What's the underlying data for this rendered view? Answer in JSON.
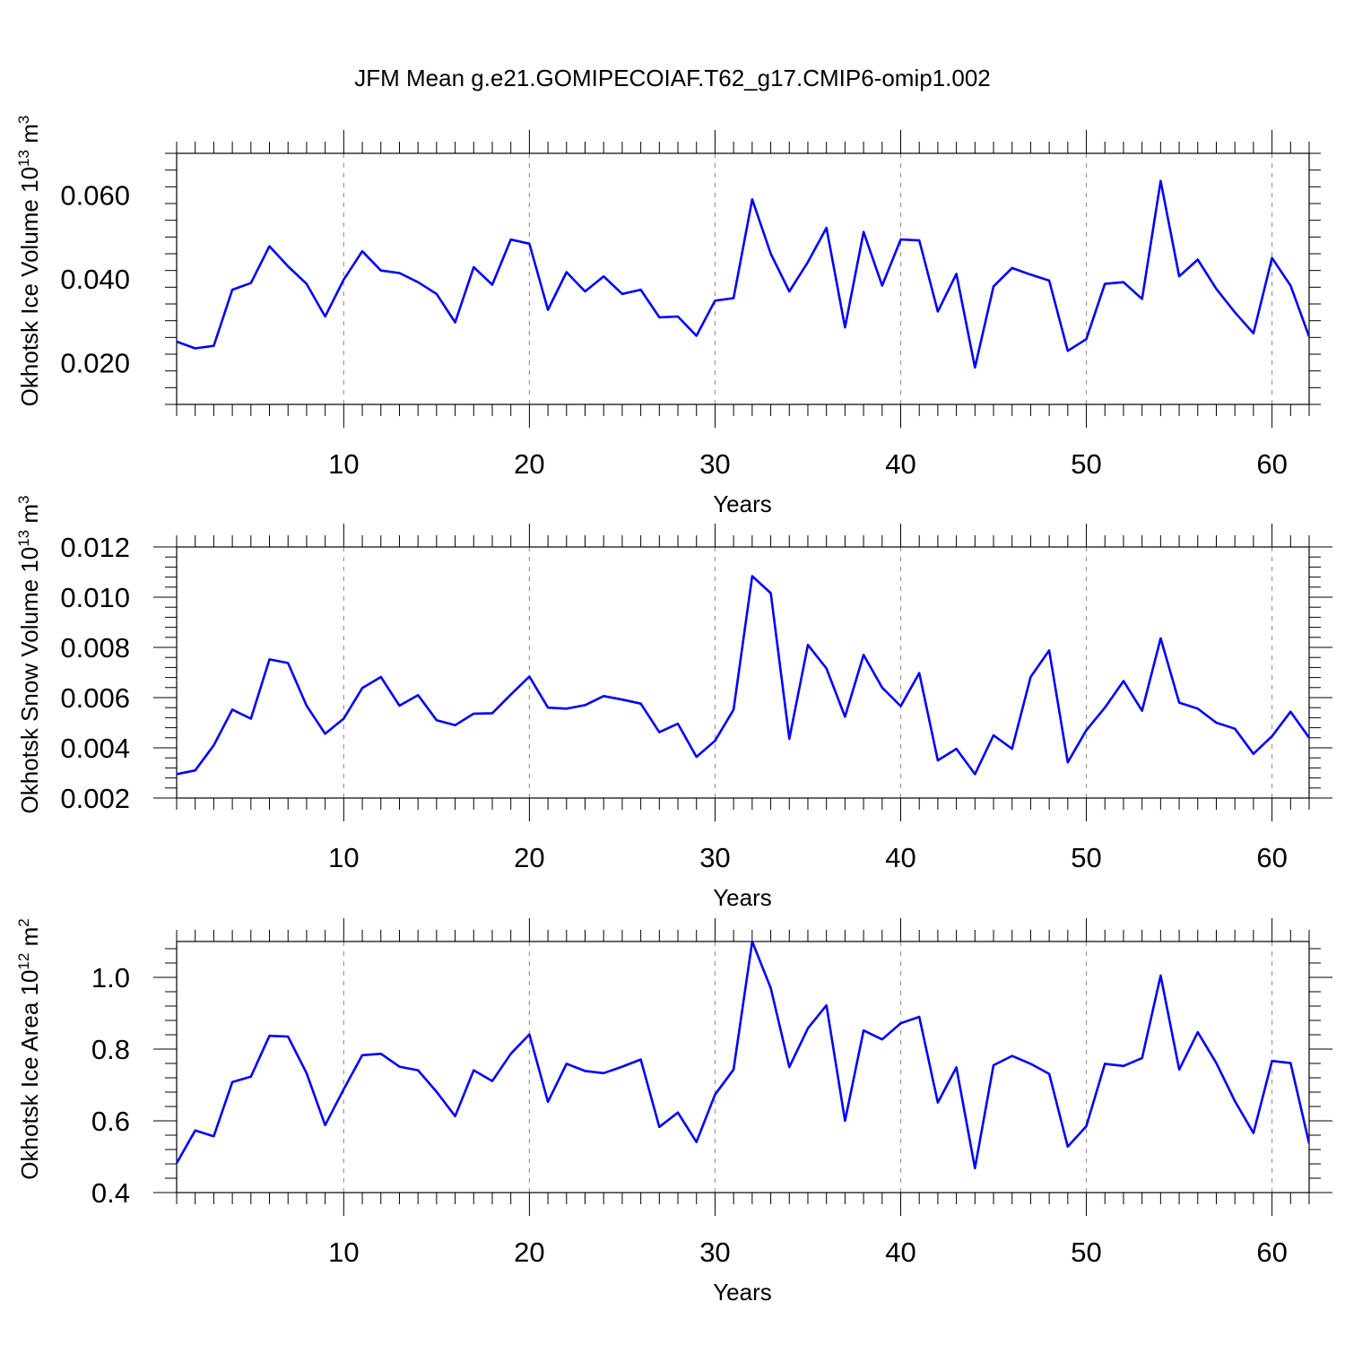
{
  "title": "JFM Mean g.e21.GOMIPECOIAF.T62_g17.CMIP6-omip1.002",
  "colors": {
    "line": "#0000ff",
    "axis": "#000000",
    "grid": "#999999"
  },
  "chart_data": [
    {
      "type": "line",
      "title": "",
      "xlabel": "Years",
      "ylabel": "Okhotsk Ice Volume 10",
      "ylabel_exp": "13",
      "ylabel_unit": " m",
      "ylabel_unit_exp": "3",
      "xlim": [
        1,
        62
      ],
      "ylim": [
        0.01,
        0.07
      ],
      "xticks": [
        10,
        20,
        30,
        40,
        50,
        60
      ],
      "xtick_labels": [
        "10",
        "20",
        "30",
        "40",
        "50",
        "60"
      ],
      "yticks": [
        0.02,
        0.04,
        0.06
      ],
      "ytick_labels": [
        "0.020",
        "0.040",
        "0.060"
      ],
      "grid_x": true,
      "x": [
        1,
        2,
        3,
        4,
        5,
        6,
        7,
        8,
        9,
        10,
        11,
        12,
        13,
        14,
        15,
        16,
        17,
        18,
        19,
        20,
        21,
        22,
        23,
        24,
        25,
        26,
        27,
        28,
        29,
        30,
        31,
        32,
        33,
        34,
        35,
        36,
        37,
        38,
        39,
        40,
        41,
        42,
        43,
        44,
        45,
        46,
        47,
        48,
        49,
        50,
        51,
        52,
        53,
        54,
        55,
        56,
        57,
        58,
        59,
        60,
        61,
        62
      ],
      "values": [
        0.025,
        0.0234,
        0.024,
        0.0374,
        0.039,
        0.0478,
        0.043,
        0.0388,
        0.031,
        0.0398,
        0.0466,
        0.042,
        0.0414,
        0.0392,
        0.0364,
        0.0296,
        0.0428,
        0.0386,
        0.0494,
        0.0484,
        0.0326,
        0.0416,
        0.037,
        0.0406,
        0.0364,
        0.0374,
        0.0308,
        0.031,
        0.0264,
        0.0348,
        0.0354,
        0.059,
        0.046,
        0.037,
        0.044,
        0.0522,
        0.0284,
        0.0512,
        0.0384,
        0.0494,
        0.0492,
        0.0322,
        0.0412,
        0.0188,
        0.0382,
        0.0426,
        0.041,
        0.0396,
        0.0228,
        0.0256,
        0.0388,
        0.0392,
        0.0352,
        0.0634,
        0.0406,
        0.0446,
        0.0376,
        0.032,
        0.027,
        0.045,
        0.0384,
        0.0262
      ]
    },
    {
      "type": "line",
      "title": "",
      "xlabel": "Years",
      "ylabel": "Okhotsk Snow Volume 10",
      "ylabel_exp": "13",
      "ylabel_unit": " m",
      "ylabel_unit_exp": "3",
      "xlim": [
        1,
        62
      ],
      "ylim": [
        0.002,
        0.012
      ],
      "xticks": [
        10,
        20,
        30,
        40,
        50,
        60
      ],
      "xtick_labels": [
        "10",
        "20",
        "30",
        "40",
        "50",
        "60"
      ],
      "yticks": [
        0.002,
        0.004,
        0.006,
        0.008,
        0.01,
        0.012
      ],
      "ytick_labels": [
        "0.002",
        "0.004",
        "0.006",
        "0.008",
        "0.010",
        "0.012"
      ],
      "grid_x": true,
      "x": [
        1,
        2,
        3,
        4,
        5,
        6,
        7,
        8,
        9,
        10,
        11,
        12,
        13,
        14,
        15,
        16,
        17,
        18,
        19,
        20,
        21,
        22,
        23,
        24,
        25,
        26,
        27,
        28,
        29,
        30,
        31,
        32,
        33,
        34,
        35,
        36,
        37,
        38,
        39,
        40,
        41,
        42,
        43,
        44,
        45,
        46,
        47,
        48,
        49,
        50,
        51,
        52,
        53,
        54,
        55,
        56,
        57,
        58,
        59,
        60,
        61,
        62
      ],
      "values": [
        0.00295,
        0.0031,
        0.0041,
        0.00552,
        0.00516,
        0.00752,
        0.00738,
        0.00568,
        0.00456,
        0.00516,
        0.00638,
        0.00682,
        0.00568,
        0.0061,
        0.0051,
        0.0049,
        0.00536,
        0.00538,
        0.00612,
        0.00684,
        0.0056,
        0.00556,
        0.0057,
        0.00606,
        0.00592,
        0.00576,
        0.00462,
        0.00496,
        0.00364,
        0.00428,
        0.00552,
        0.01084,
        0.01016,
        0.00436,
        0.0081,
        0.00716,
        0.00524,
        0.0077,
        0.0064,
        0.00566,
        0.00698,
        0.0035,
        0.00396,
        0.00295,
        0.0045,
        0.00396,
        0.00682,
        0.00788,
        0.00342,
        0.0047,
        0.0056,
        0.00666,
        0.00548,
        0.00836,
        0.0058,
        0.00556,
        0.005,
        0.00476,
        0.00376,
        0.00446,
        0.00544,
        0.0044
      ]
    },
    {
      "type": "line",
      "title": "",
      "xlabel": "Years",
      "ylabel": "Okhotsk Ice Area 10",
      "ylabel_exp": "12",
      "ylabel_unit": " m",
      "ylabel_unit_exp": "2",
      "xlim": [
        1,
        62
      ],
      "ylim": [
        0.4,
        1.1
      ],
      "xticks": [
        10,
        20,
        30,
        40,
        50,
        60
      ],
      "xtick_labels": [
        "10",
        "20",
        "30",
        "40",
        "50",
        "60"
      ],
      "yticks": [
        0.4,
        0.6,
        0.8,
        1.0
      ],
      "ytick_labels": [
        "0.4",
        "0.6",
        "0.8",
        "1.0"
      ],
      "grid_x": true,
      "x": [
        1,
        2,
        3,
        4,
        5,
        6,
        7,
        8,
        9,
        10,
        11,
        12,
        13,
        14,
        15,
        16,
        17,
        18,
        19,
        20,
        21,
        22,
        23,
        24,
        25,
        26,
        27,
        28,
        29,
        30,
        31,
        32,
        33,
        34,
        35,
        36,
        37,
        38,
        39,
        40,
        41,
        42,
        43,
        44,
        45,
        46,
        47,
        48,
        49,
        50,
        51,
        52,
        53,
        54,
        55,
        56,
        57,
        58,
        59,
        60,
        61,
        62
      ],
      "values": [
        0.482,
        0.573,
        0.557,
        0.708,
        0.723,
        0.837,
        0.835,
        0.733,
        0.588,
        0.688,
        0.783,
        0.787,
        0.751,
        0.741,
        0.681,
        0.613,
        0.741,
        0.711,
        0.787,
        0.841,
        0.653,
        0.759,
        0.739,
        0.733,
        0.751,
        0.771,
        0.583,
        0.623,
        0.541,
        0.673,
        0.743,
        1.1,
        0.97,
        0.75,
        0.858,
        0.922,
        0.6,
        0.852,
        0.827,
        0.872,
        0.89,
        0.651,
        0.749,
        0.468,
        0.755,
        0.781,
        0.759,
        0.731,
        0.528,
        0.585,
        0.759,
        0.753,
        0.775,
        1.005,
        0.743,
        0.847,
        0.761,
        0.655,
        0.566,
        0.767,
        0.761,
        0.537
      ]
    }
  ]
}
